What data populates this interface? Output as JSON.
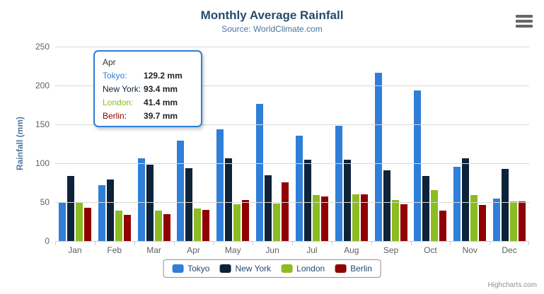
{
  "chart": {
    "title": "Monthly Average Rainfall",
    "subtitle": "Source: WorldClimate.com",
    "y_axis_title": "Rainfall (mm)",
    "credits": "Highcharts.com",
    "menu_icon": "hamburger-icon"
  },
  "chart_data": {
    "type": "bar",
    "title": "Monthly Average Rainfall",
    "subtitle": "Source: WorldClimate.com",
    "xlabel": "",
    "ylabel": "Rainfall (mm)",
    "ylim": [
      0,
      250
    ],
    "ytick_interval": 50,
    "yticks": [
      0,
      50,
      100,
      150,
      200,
      250
    ],
    "grid": true,
    "legend_position": "bottom",
    "categories": [
      "Jan",
      "Feb",
      "Mar",
      "Apr",
      "May",
      "Jun",
      "Jul",
      "Aug",
      "Sep",
      "Oct",
      "Nov",
      "Dec"
    ],
    "series": [
      {
        "name": "Tokyo",
        "color": "#2f7ed8",
        "values": [
          49.9,
          71.5,
          106.4,
          129.2,
          144.0,
          176.0,
          135.6,
          148.5,
          216.4,
          194.1,
          95.6,
          54.4
        ]
      },
      {
        "name": "New York",
        "color": "#0d233a",
        "values": [
          83.6,
          78.8,
          98.5,
          93.4,
          106.0,
          84.5,
          105.0,
          104.3,
          91.2,
          83.5,
          106.6,
          92.3
        ]
      },
      {
        "name": "London",
        "color": "#8bbc21",
        "values": [
          48.9,
          38.8,
          39.3,
          41.4,
          47.0,
          48.3,
          59.0,
          59.6,
          52.4,
          65.2,
          59.3,
          51.2
        ]
      },
      {
        "name": "Berlin",
        "color": "#910000",
        "values": [
          42.4,
          33.2,
          34.5,
          39.7,
          52.6,
          75.5,
          57.4,
          60.4,
          47.6,
          39.1,
          46.8,
          51.1
        ]
      }
    ]
  },
  "tooltip": {
    "category": "Apr",
    "rows": [
      {
        "label": "Tokyo:",
        "value": "129.2 mm",
        "color": "#2f7ed8"
      },
      {
        "label": "New York:",
        "value": "93.4 mm",
        "color": "#0d233a"
      },
      {
        "label": "London:",
        "value": "41.4 mm",
        "color": "#8bbc21"
      },
      {
        "label": "Berlin:",
        "value": "39.7 mm",
        "color": "#910000"
      }
    ]
  },
  "ui_colors": {
    "title_text": "#274b6d",
    "subtitle_text": "#4d759e",
    "axis_label_text": "#606060",
    "gridline": "#d8d8d8",
    "axis_line": "#c0d0e0",
    "legend_border": "#909090",
    "tooltip_border": "#2f7ed8"
  }
}
